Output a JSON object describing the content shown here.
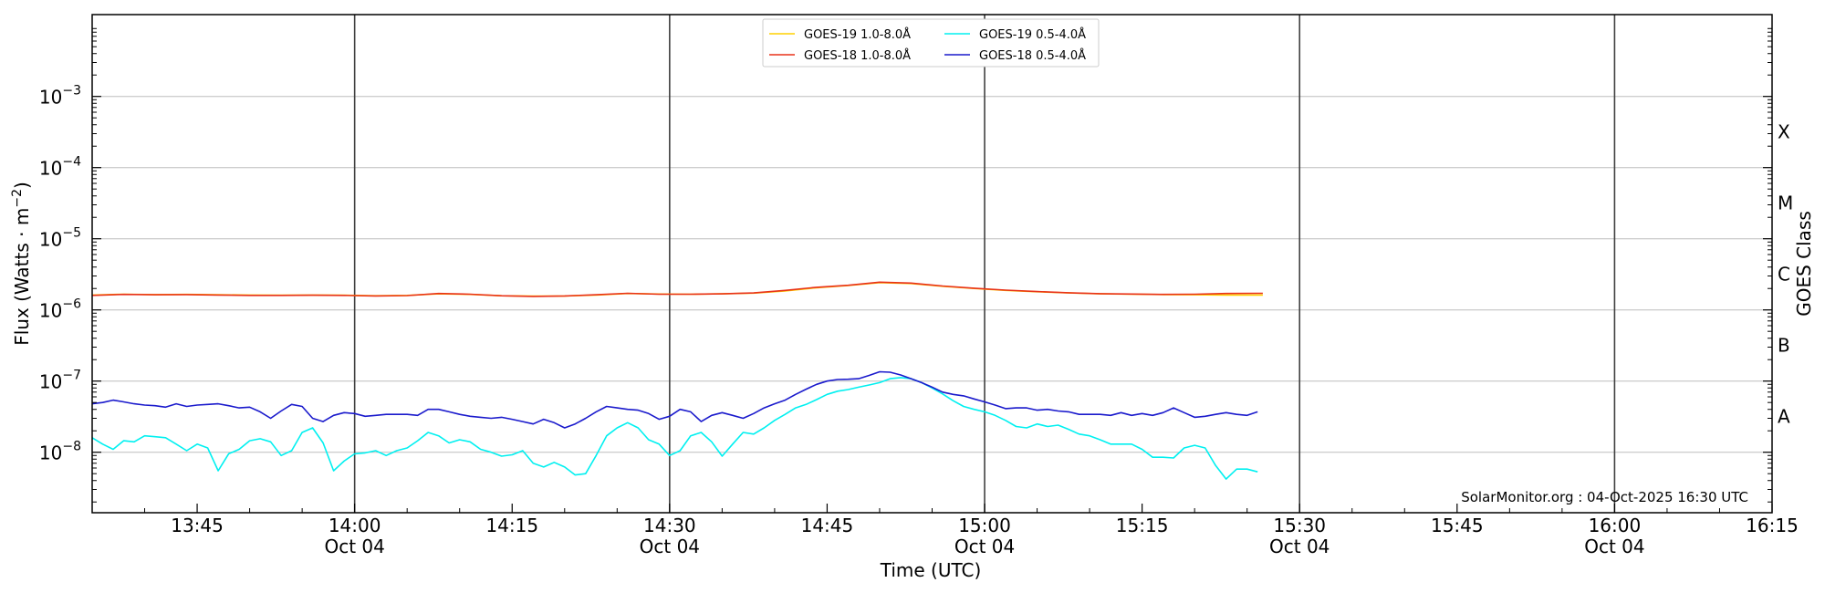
{
  "chart_data": {
    "type": "line",
    "ylabel_prefix": "Flux (Watts · m",
    "ylabel_exp": "−2",
    "ylabel_suffix": ")",
    "xlabel": "Time (UTC)",
    "right_label": "GOES Class",
    "credit": "SolarMonitor.org : 04-Oct-2025 16:30 UTC",
    "x_minutes_range": [
      815,
      975
    ],
    "y_log_range": [
      -8.85,
      -1.85
    ],
    "x_ticks": [
      {
        "min": 825,
        "time": "13:45",
        "date": ""
      },
      {
        "min": 840,
        "time": "14:00",
        "date": "Oct 04"
      },
      {
        "min": 855,
        "time": "14:15",
        "date": ""
      },
      {
        "min": 870,
        "time": "14:30",
        "date": "Oct 04"
      },
      {
        "min": 885,
        "time": "14:45",
        "date": ""
      },
      {
        "min": 900,
        "time": "15:00",
        "date": "Oct 04"
      },
      {
        "min": 915,
        "time": "15:15",
        "date": ""
      },
      {
        "min": 930,
        "time": "15:30",
        "date": "Oct 04"
      },
      {
        "min": 945,
        "time": "15:45",
        "date": ""
      },
      {
        "min": 960,
        "time": "16:00",
        "date": "Oct 04"
      },
      {
        "min": 975,
        "time": "16:15",
        "date": ""
      }
    ],
    "vlines_min": [
      840,
      870,
      900,
      930,
      960
    ],
    "y_ticks": [
      {
        "exp": -8,
        "label": "10",
        "sup": "−8"
      },
      {
        "exp": -7,
        "label": "10",
        "sup": "−7"
      },
      {
        "exp": -6,
        "label": "10",
        "sup": "−6"
      },
      {
        "exp": -5,
        "label": "10",
        "sup": "−5"
      },
      {
        "exp": -4,
        "label": "10",
        "sup": "−4"
      },
      {
        "exp": -3,
        "label": "10",
        "sup": "−3"
      }
    ],
    "goes_classes": [
      {
        "label": "A",
        "exp": -7.5
      },
      {
        "label": "B",
        "exp": -6.5
      },
      {
        "label": "C",
        "exp": -5.5
      },
      {
        "label": "M",
        "exp": -4.5
      },
      {
        "label": "X",
        "exp": -3.5
      }
    ],
    "series": [
      {
        "name": "GOES-19 1.0-8.0Å",
        "color": "#ffd000",
        "x": [
          815,
          818,
          821,
          824,
          827,
          830,
          833,
          836,
          839,
          842,
          845,
          848,
          851,
          854,
          857,
          860,
          863,
          866,
          869,
          872,
          875,
          878,
          881,
          884,
          887,
          890,
          893,
          896,
          899,
          902,
          905,
          908,
          911,
          914,
          917,
          920,
          923,
          926,
          926.5
        ],
        "y": [
          1.62e-06,
          1.66e-06,
          1.64e-06,
          1.65e-06,
          1.63e-06,
          1.62e-06,
          1.61e-06,
          1.62e-06,
          1.61e-06,
          1.58e-06,
          1.6e-06,
          1.68e-06,
          1.65e-06,
          1.58e-06,
          1.56e-06,
          1.57e-06,
          1.62e-06,
          1.7e-06,
          1.67e-06,
          1.66e-06,
          1.68e-06,
          1.72e-06,
          1.85e-06,
          2.05e-06,
          2.2e-06,
          2.42e-06,
          2.35e-06,
          2.15e-06,
          2e-06,
          1.88e-06,
          1.8e-06,
          1.73e-06,
          1.68e-06,
          1.66e-06,
          1.64e-06,
          1.63e-06,
          1.62e-06,
          1.62e-06,
          1.62e-06
        ]
      },
      {
        "name": "GOES-18 1.0-8.0Å",
        "color": "#e8321a",
        "x": [
          815,
          818,
          821,
          824,
          827,
          830,
          833,
          836,
          839,
          842,
          845,
          848,
          851,
          854,
          857,
          860,
          863,
          866,
          869,
          872,
          875,
          878,
          881,
          884,
          887,
          890,
          893,
          896,
          899,
          902,
          905,
          908,
          911,
          914,
          917,
          920,
          923,
          926,
          926.5
        ],
        "y": [
          1.6e-06,
          1.65e-06,
          1.63e-06,
          1.64e-06,
          1.62e-06,
          1.6e-06,
          1.6e-06,
          1.61e-06,
          1.6e-06,
          1.57e-06,
          1.59e-06,
          1.7e-06,
          1.66e-06,
          1.58e-06,
          1.55e-06,
          1.57e-06,
          1.63e-06,
          1.71e-06,
          1.66e-06,
          1.66e-06,
          1.68e-06,
          1.73e-06,
          1.88e-06,
          2.08e-06,
          2.22e-06,
          2.45e-06,
          2.38e-06,
          2.17e-06,
          2.02e-06,
          1.9e-06,
          1.81e-06,
          1.74e-06,
          1.69e-06,
          1.67e-06,
          1.65e-06,
          1.66e-06,
          1.7e-06,
          1.71e-06,
          1.71e-06
        ]
      },
      {
        "name": "GOES-19 0.5-4.0Å",
        "color": "#00f0f0",
        "x": [
          815,
          816,
          817,
          818,
          819,
          820,
          821,
          822,
          823,
          824,
          825,
          826,
          827,
          828,
          829,
          830,
          831,
          832,
          833,
          834,
          835,
          836,
          837,
          838,
          839,
          840,
          841,
          842,
          843,
          844,
          845,
          846,
          847,
          848,
          849,
          850,
          851,
          852,
          853,
          854,
          855,
          856,
          857,
          858,
          859,
          860,
          861,
          862,
          863,
          864,
          865,
          866,
          867,
          868,
          869,
          870,
          871,
          872,
          873,
          874,
          875,
          876,
          877,
          878,
          879,
          880,
          881,
          882,
          883,
          884,
          885,
          886,
          887,
          888,
          889,
          890,
          891,
          892,
          893,
          894,
          895,
          896,
          897,
          898,
          899,
          900,
          901,
          902,
          903,
          904,
          905,
          906,
          907,
          908,
          909,
          910,
          911,
          912,
          913,
          914,
          915,
          916,
          917,
          918,
          919,
          920,
          921,
          922,
          923,
          924,
          925,
          926
        ],
        "y": [
          1.6e-08,
          1.3e-08,
          1.1e-08,
          1.45e-08,
          1.4e-08,
          1.7e-08,
          1.65e-08,
          1.6e-08,
          1.3e-08,
          1.05e-08,
          1.3e-08,
          1.15e-08,
          5.5e-09,
          9.5e-09,
          1.1e-08,
          1.45e-08,
          1.55e-08,
          1.4e-08,
          9e-09,
          1.05e-08,
          1.9e-08,
          2.2e-08,
          1.35e-08,
          5.5e-09,
          7.5e-09,
          9.5e-09,
          9.8e-09,
          1.05e-08,
          9e-09,
          1.05e-08,
          1.15e-08,
          1.45e-08,
          1.9e-08,
          1.7e-08,
          1.35e-08,
          1.5e-08,
          1.4e-08,
          1.1e-08,
          1e-08,
          8.8e-09,
          9.2e-09,
          1.05e-08,
          7e-09,
          6.2e-09,
          7.2e-09,
          6.2e-09,
          4.8e-09,
          5e-09,
          9e-09,
          1.7e-08,
          2.2e-08,
          2.6e-08,
          2.2e-08,
          1.5e-08,
          1.3e-08,
          9e-09,
          1.05e-08,
          1.7e-08,
          1.9e-08,
          1.4e-08,
          8.8e-09,
          1.3e-08,
          1.9e-08,
          1.8e-08,
          2.2e-08,
          2.8e-08,
          3.4e-08,
          4.2e-08,
          4.7e-08,
          5.5e-08,
          6.5e-08,
          7.2e-08,
          7.6e-08,
          8.2e-08,
          8.8e-08,
          9.5e-08,
          1.08e-07,
          1.12e-07,
          1.08e-07,
          9.5e-08,
          8e-08,
          6.6e-08,
          5.3e-08,
          4.4e-08,
          4e-08,
          3.7e-08,
          3.3e-08,
          2.8e-08,
          2.3e-08,
          2.2e-08,
          2.5e-08,
          2.3e-08,
          2.4e-08,
          2.1e-08,
          1.8e-08,
          1.7e-08,
          1.5e-08,
          1.3e-08,
          1.3e-08,
          1.3e-08,
          1.1e-08,
          8.5e-09,
          8.5e-09,
          8.3e-09,
          1.15e-08,
          1.25e-08,
          1.15e-08,
          6.5e-09,
          4.2e-09,
          5.8e-09,
          5.8e-09,
          5.3e-09
        ]
      },
      {
        "name": "GOES-18 0.5-4.0Å",
        "color": "#1a1acc",
        "x": [
          815,
          816,
          817,
          818,
          819,
          820,
          821,
          822,
          823,
          824,
          825,
          826,
          827,
          828,
          829,
          830,
          831,
          832,
          833,
          834,
          835,
          836,
          837,
          838,
          839,
          840,
          841,
          842,
          843,
          844,
          845,
          846,
          847,
          848,
          849,
          850,
          851,
          852,
          853,
          854,
          855,
          856,
          857,
          858,
          859,
          860,
          861,
          862,
          863,
          864,
          865,
          866,
          867,
          868,
          869,
          870,
          871,
          872,
          873,
          874,
          875,
          876,
          877,
          878,
          879,
          880,
          881,
          882,
          883,
          884,
          885,
          886,
          887,
          888,
          889,
          890,
          891,
          892,
          893,
          894,
          895,
          896,
          897,
          898,
          899,
          900,
          901,
          902,
          903,
          904,
          905,
          906,
          907,
          908,
          909,
          910,
          911,
          912,
          913,
          914,
          915,
          916,
          917,
          918,
          919,
          920,
          921,
          922,
          923,
          924,
          925,
          926
        ],
        "y": [
          4.8e-08,
          5e-08,
          5.4e-08,
          5.1e-08,
          4.8e-08,
          4.6e-08,
          4.5e-08,
          4.3e-08,
          4.8e-08,
          4.4e-08,
          4.6e-08,
          4.7e-08,
          4.8e-08,
          4.5e-08,
          4.2e-08,
          4.3e-08,
          3.7e-08,
          3e-08,
          3.8e-08,
          4.7e-08,
          4.4e-08,
          3e-08,
          2.7e-08,
          3.3e-08,
          3.6e-08,
          3.5e-08,
          3.2e-08,
          3.3e-08,
          3.4e-08,
          3.4e-08,
          3.4e-08,
          3.3e-08,
          4e-08,
          4e-08,
          3.7e-08,
          3.4e-08,
          3.2e-08,
          3.1e-08,
          3e-08,
          3.1e-08,
          2.9e-08,
          2.7e-08,
          2.5e-08,
          2.9e-08,
          2.6e-08,
          2.2e-08,
          2.5e-08,
          3e-08,
          3.7e-08,
          4.4e-08,
          4.2e-08,
          4e-08,
          3.9e-08,
          3.5e-08,
          2.9e-08,
          3.2e-08,
          4e-08,
          3.7e-08,
          2.7e-08,
          3.3e-08,
          3.6e-08,
          3.3e-08,
          3e-08,
          3.5e-08,
          4.2e-08,
          4.8e-08,
          5.4e-08,
          6.5e-08,
          7.7e-08,
          9e-08,
          1e-07,
          1.05e-07,
          1.06e-07,
          1.08e-07,
          1.2e-07,
          1.35e-07,
          1.33e-07,
          1.22e-07,
          1.08e-07,
          9.5e-08,
          8.2e-08,
          7e-08,
          6.5e-08,
          6.2e-08,
          5.6e-08,
          5.1e-08,
          4.6e-08,
          4.1e-08,
          4.2e-08,
          4.2e-08,
          3.9e-08,
          4e-08,
          3.8e-08,
          3.7e-08,
          3.4e-08,
          3.4e-08,
          3.4e-08,
          3.3e-08,
          3.6e-08,
          3.3e-08,
          3.5e-08,
          3.3e-08,
          3.6e-08,
          4.2e-08,
          3.6e-08,
          3.1e-08,
          3.2e-08,
          3.4e-08,
          3.6e-08,
          3.4e-08,
          3.3e-08,
          3.7e-08
        ]
      }
    ],
    "legend": {
      "columns": [
        [
          "GOES-19 1.0-8.0Å",
          "GOES-18 1.0-8.0Å"
        ],
        [
          "GOES-19 0.5-4.0Å",
          "GOES-18 0.5-4.0Å"
        ]
      ],
      "placement": "top-center"
    },
    "grid": "horizontal at decades"
  }
}
